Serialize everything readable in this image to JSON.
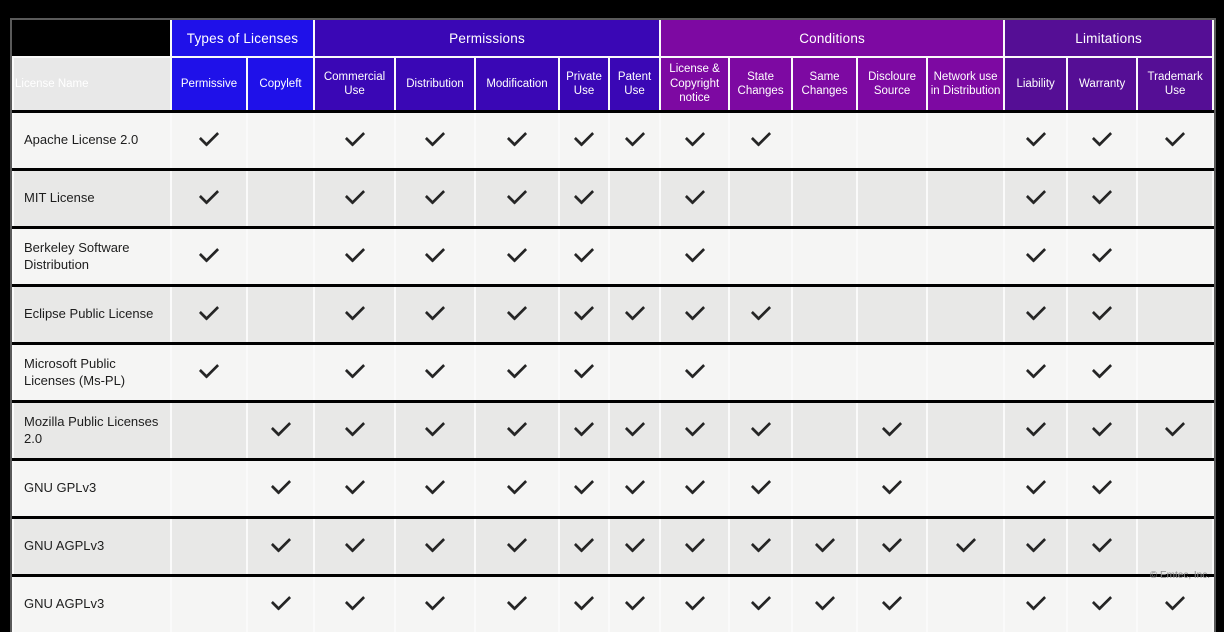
{
  "footer": "© Emtec, Inc.",
  "colors": {
    "page_background": "#000000",
    "table_border": "#5a5a5a",
    "row_light": "#f5f5f4",
    "row_dark": "#e8e8e7",
    "header_name_cell": "#e8e8e8",
    "check": "#262626"
  },
  "chart_data": {
    "type": "table",
    "corner_label": "License Name",
    "groups": [
      {
        "label": "Types of Licenses",
        "color": "#1f11e9",
        "span": 2
      },
      {
        "label": "Permissions",
        "color": "#3a07b5",
        "span": 5
      },
      {
        "label": "Conditions",
        "color": "#7d09a2",
        "span": 5
      },
      {
        "label": "Limitations",
        "color": "#550e95",
        "span": 3
      }
    ],
    "columns": [
      "Permissive",
      "Copyleft",
      "Commercial Use",
      "Distribution",
      "Modification",
      "Private Use",
      "Patent Use",
      "License & Copyright notice",
      "State Changes",
      "Same Changes",
      "Discloure Source",
      "Network use in Distribution",
      "Liability",
      "Warranty",
      "Trademark Use"
    ],
    "rows": [
      {
        "name": "Apache License 2.0",
        "checks": [
          true,
          false,
          true,
          true,
          true,
          true,
          true,
          true,
          true,
          false,
          false,
          false,
          true,
          true,
          true
        ]
      },
      {
        "name": "MIT License",
        "checks": [
          true,
          false,
          true,
          true,
          true,
          true,
          false,
          true,
          false,
          false,
          false,
          false,
          true,
          true,
          false
        ]
      },
      {
        "name": "Berkeley Software Distribution",
        "checks": [
          true,
          false,
          true,
          true,
          true,
          true,
          false,
          true,
          false,
          false,
          false,
          false,
          true,
          true,
          false
        ]
      },
      {
        "name": "Eclipse Public License",
        "checks": [
          true,
          false,
          true,
          true,
          true,
          true,
          true,
          true,
          true,
          false,
          false,
          false,
          true,
          true,
          false
        ]
      },
      {
        "name": "Microsoft Public Licenses (Ms-PL)",
        "checks": [
          true,
          false,
          true,
          true,
          true,
          true,
          false,
          true,
          false,
          false,
          false,
          false,
          true,
          true,
          false
        ]
      },
      {
        "name": "Mozilla Public Licenses 2.0",
        "checks": [
          false,
          true,
          true,
          true,
          true,
          true,
          true,
          true,
          true,
          false,
          true,
          false,
          true,
          true,
          true
        ]
      },
      {
        "name": "GNU GPLv3",
        "checks": [
          false,
          true,
          true,
          true,
          true,
          true,
          true,
          true,
          true,
          false,
          true,
          false,
          true,
          true,
          false
        ]
      },
      {
        "name": "GNU AGPLv3",
        "checks": [
          false,
          true,
          true,
          true,
          true,
          true,
          true,
          true,
          true,
          true,
          true,
          true,
          true,
          true,
          false
        ]
      },
      {
        "name": "GNU AGPLv3",
        "checks": [
          false,
          true,
          true,
          true,
          true,
          true,
          true,
          true,
          true,
          true,
          true,
          false,
          true,
          true,
          true
        ]
      }
    ]
  }
}
